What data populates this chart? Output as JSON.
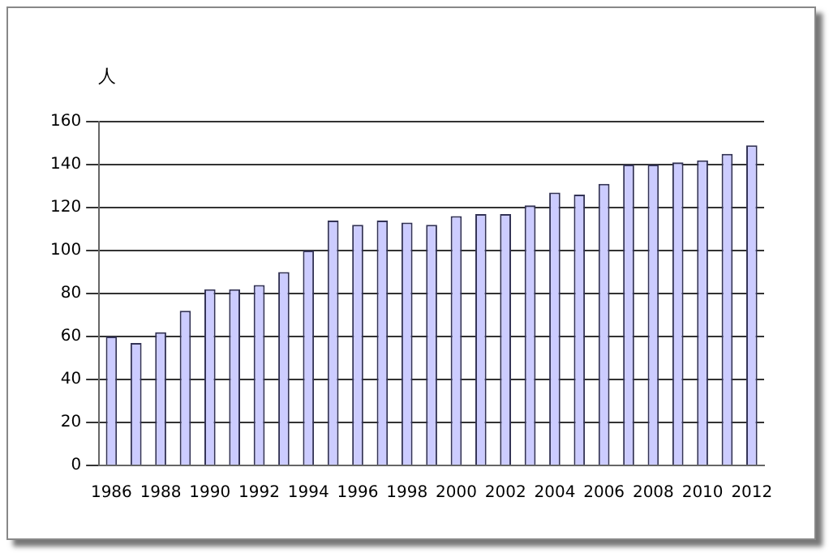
{
  "chart_data": {
    "type": "bar",
    "ylabel": "人",
    "categories": [
      "1986",
      null,
      "1988",
      null,
      "1990",
      null,
      "1992",
      null,
      "1994",
      null,
      "1996",
      null,
      "1998",
      null,
      "2000",
      null,
      "2002",
      null,
      "2004",
      null,
      "2006",
      null,
      "2008",
      null,
      "2010",
      null,
      "2012"
    ],
    "values": [
      60,
      57,
      62,
      72,
      82,
      82,
      84,
      90,
      100,
      114,
      112,
      114,
      113,
      112,
      116,
      117,
      117,
      121,
      127,
      126,
      131,
      140,
      140,
      141,
      142,
      145,
      149
    ],
    "color": "#ccccff",
    "ylim": [
      0,
      160
    ],
    "yticks": [
      0,
      20,
      40,
      60,
      80,
      100,
      120,
      140,
      160
    ],
    "grid": "y"
  }
}
